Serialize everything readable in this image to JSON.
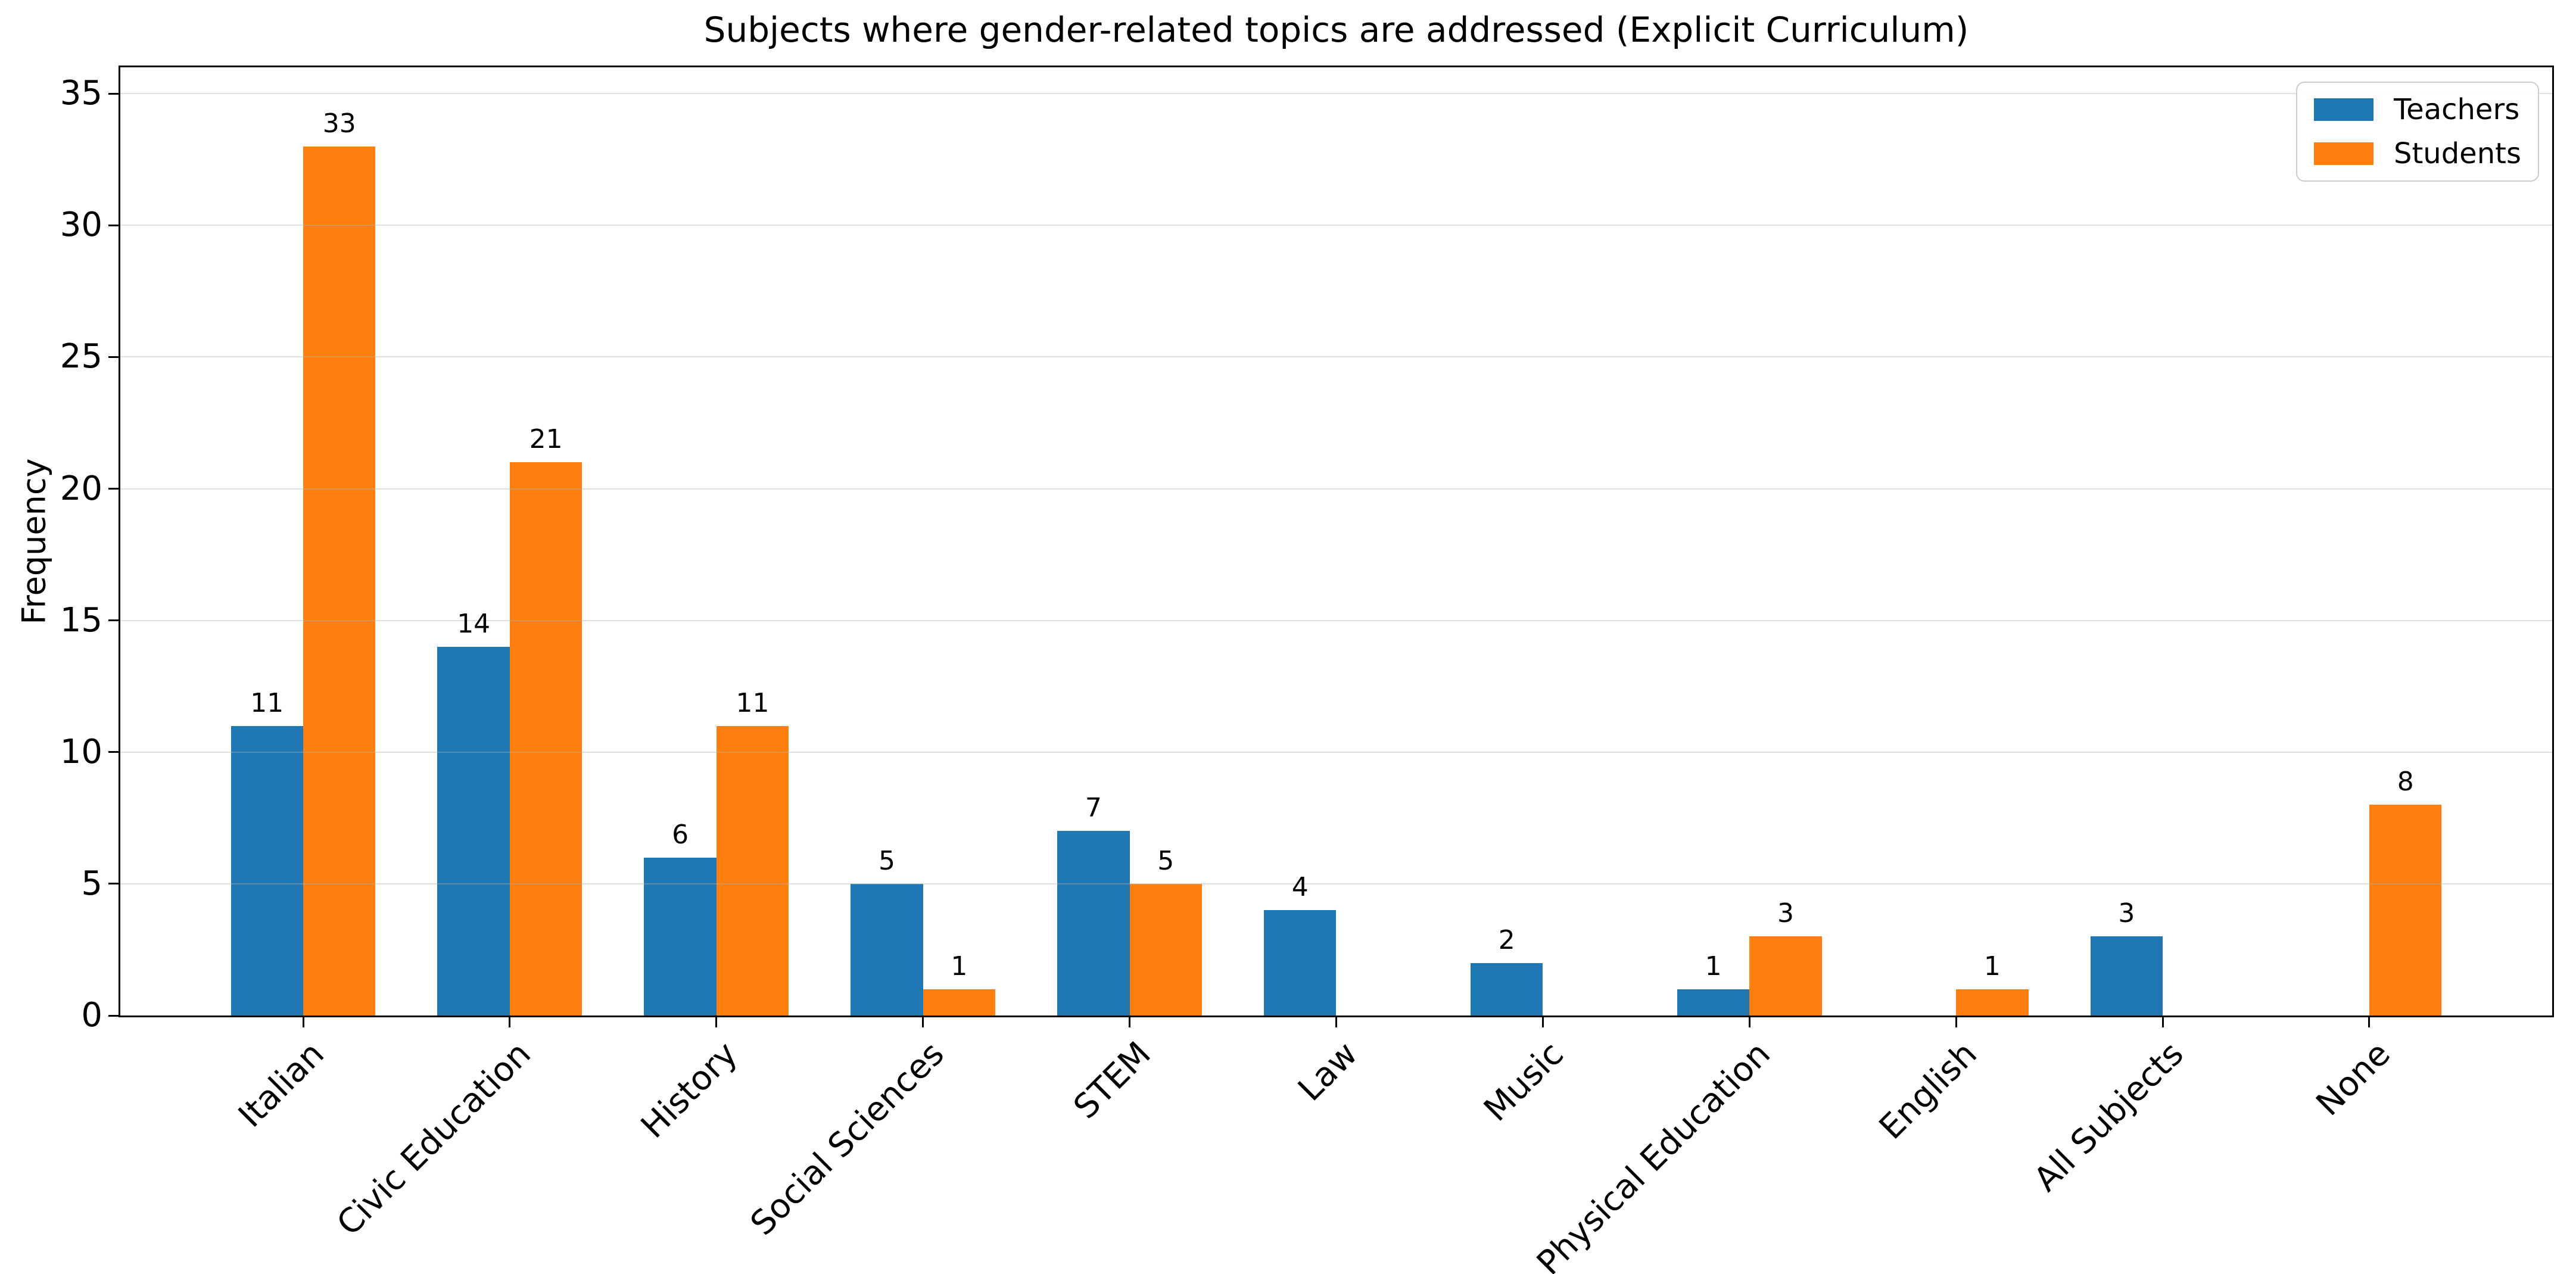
{
  "figure": {
    "title": "Subjects where gender-related topics are addressed (Explicit Curriculum)",
    "ylabel": "Frequency"
  },
  "colors": {
    "teachers": "#1f77b4",
    "students": "#ff7f0e",
    "grid": "#b0b0b0",
    "axis": "#000000",
    "background": "#ffffff",
    "legend_border": "#cccccc"
  },
  "legend": {
    "position": "upper right",
    "items": [
      "Teachers",
      "Students"
    ]
  },
  "chart_data": {
    "type": "bar",
    "title": "Subjects where gender-related topics are addressed (Explicit Curriculum)",
    "xlabel": "",
    "ylabel": "Frequency",
    "categories": [
      "Italian",
      "Civic Education",
      "History",
      "Social Sciences",
      "STEM",
      "Law",
      "Music",
      "Physical Education",
      "English",
      "All Subjects",
      "None"
    ],
    "series": [
      {
        "name": "Teachers",
        "color": "#1f77b4",
        "values": [
          11,
          14,
          6,
          5,
          7,
          4,
          2,
          1,
          0,
          3,
          0
        ]
      },
      {
        "name": "Students",
        "color": "#ff7f0e",
        "values": [
          33,
          21,
          11,
          1,
          5,
          0,
          0,
          3,
          1,
          0,
          8
        ]
      }
    ],
    "ylim": [
      0,
      36
    ],
    "yticks": [
      0,
      5,
      10,
      15,
      20,
      25,
      30,
      35
    ],
    "grid": true,
    "grid_on_top_alpha": 0.4,
    "bar_value_labels": true,
    "tick_label_rotation_deg": 45,
    "legend_position": "upper right"
  }
}
